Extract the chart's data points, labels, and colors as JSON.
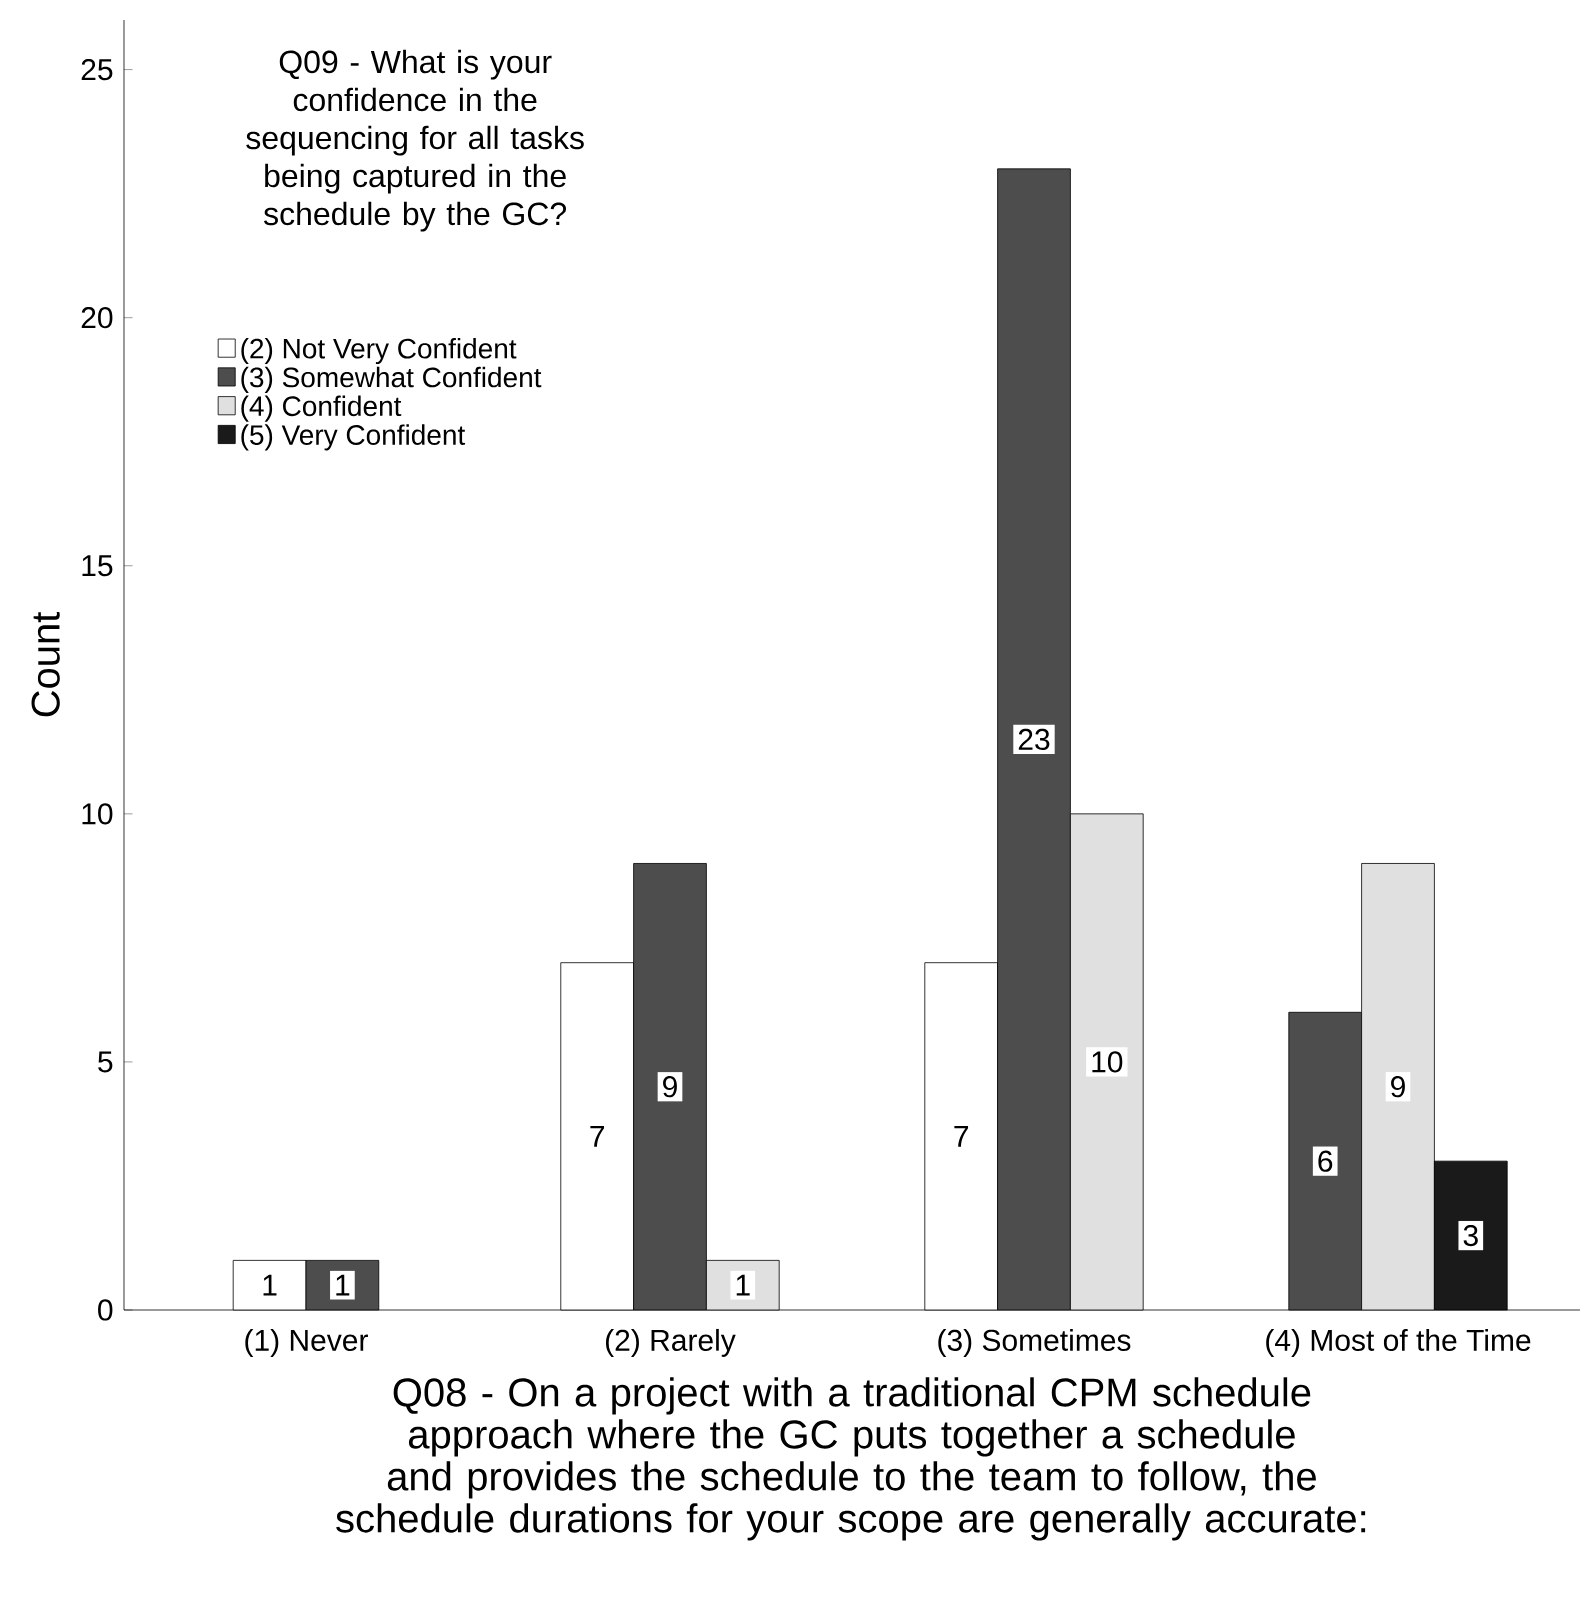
{
  "chart_data": {
    "type": "bar",
    "xlabel": "Q08 - On a project with a traditional CPM schedule approach where the GC puts together a schedule and provides the schedule to the team to follow, the schedule durations for your scope are generally accurate:",
    "ylabel": "Count",
    "legend_title": "Q09 - What is your confidence in the sequencing for all tasks being captured in the schedule by the GC?",
    "categories": [
      "(1) Never",
      "(2) Rarely",
      "(3) Sometimes",
      "(4) Most of the Time"
    ],
    "series": [
      {
        "name": "(2) Not Very Confident",
        "color": "#ffffff",
        "values": [
          1,
          7,
          7,
          null
        ]
      },
      {
        "name": "(3) Somewhat Confident",
        "color": "#4d4d4d",
        "values": [
          1,
          9,
          23,
          6
        ]
      },
      {
        "name": "(4) Confident",
        "color": "#e0e0e0",
        "values": [
          null,
          1,
          10,
          9
        ]
      },
      {
        "name": "(5) Very Confident",
        "color": "#1a1a1a",
        "values": [
          null,
          null,
          null,
          3
        ]
      }
    ],
    "ylim": [
      0,
      26
    ],
    "yticks": [
      0,
      5,
      10,
      15,
      20,
      25
    ],
    "legend": "top left",
    "data_labels": true,
    "grid": false
  }
}
